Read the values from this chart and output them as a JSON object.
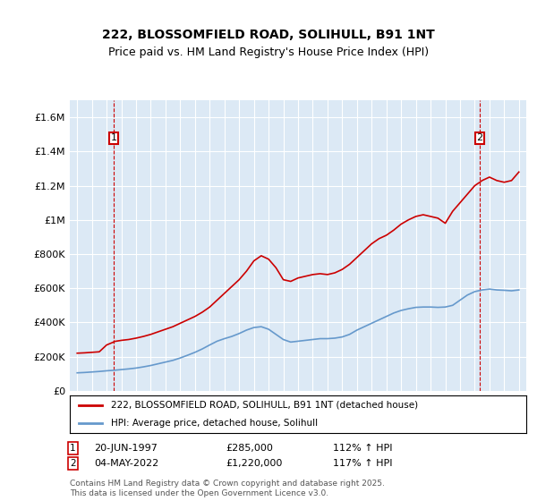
{
  "title_line1": "222, BLOSSOMFIELD ROAD, SOLIHULL, B91 1NT",
  "title_line2": "Price paid vs. HM Land Registry's House Price Index (HPI)",
  "ylabel": "",
  "background_color": "#dce9f5",
  "plot_bg_color": "#dce9f5",
  "outer_bg_color": "#ffffff",
  "red_line_color": "#cc0000",
  "blue_line_color": "#6699cc",
  "grid_color": "#ffffff",
  "ylim": [
    0,
    1700000
  ],
  "yticks": [
    0,
    200000,
    400000,
    600000,
    800000,
    1000000,
    1200000,
    1400000,
    1600000
  ],
  "ytick_labels": [
    "£0",
    "£200K",
    "£400K",
    "£600K",
    "£800K",
    "£1M",
    "£1.2M",
    "£1.4M",
    "£1.6M"
  ],
  "xlim_start": 1994.5,
  "xlim_end": 2025.5,
  "xticks": [
    1995,
    1996,
    1997,
    1998,
    1999,
    2000,
    2001,
    2002,
    2003,
    2004,
    2005,
    2006,
    2007,
    2008,
    2009,
    2010,
    2011,
    2012,
    2013,
    2014,
    2015,
    2016,
    2017,
    2018,
    2019,
    2020,
    2021,
    2022,
    2023,
    2024,
    2025
  ],
  "marker1_x": 1997.47,
  "marker1_y": 285000,
  "marker1_label": "1",
  "marker1_date": "20-JUN-1997",
  "marker1_price": "£285,000",
  "marker1_hpi": "112% ↑ HPI",
  "marker2_x": 2022.34,
  "marker2_y": 1220000,
  "marker2_label": "2",
  "marker2_date": "04-MAY-2022",
  "marker2_price": "£1,220,000",
  "marker2_hpi": "117% ↑ HPI",
  "legend_label_red": "222, BLOSSOMFIELD ROAD, SOLIHULL, B91 1NT (detached house)",
  "legend_label_blue": "HPI: Average price, detached house, Solihull",
  "footnote": "Contains HM Land Registry data © Crown copyright and database right 2025.\nThis data is licensed under the Open Government Licence v3.0.",
  "red_x": [
    1995.0,
    1995.5,
    1996.0,
    1996.5,
    1997.0,
    1997.47,
    1997.5,
    1998.0,
    1998.5,
    1999.0,
    1999.5,
    2000.0,
    2000.5,
    2001.0,
    2001.5,
    2002.0,
    2002.5,
    2003.0,
    2003.5,
    2004.0,
    2004.5,
    2005.0,
    2005.5,
    2006.0,
    2006.5,
    2007.0,
    2007.5,
    2008.0,
    2008.5,
    2009.0,
    2009.5,
    2010.0,
    2010.5,
    2011.0,
    2011.5,
    2012.0,
    2012.5,
    2013.0,
    2013.5,
    2014.0,
    2014.5,
    2015.0,
    2015.5,
    2016.0,
    2016.5,
    2017.0,
    2017.5,
    2018.0,
    2018.5,
    2019.0,
    2019.5,
    2020.0,
    2020.5,
    2021.0,
    2021.5,
    2022.0,
    2022.34,
    2022.5,
    2023.0,
    2023.5,
    2024.0,
    2024.5,
    2025.0
  ],
  "red_y": [
    220000,
    222000,
    225000,
    228000,
    268000,
    285000,
    288000,
    295000,
    300000,
    308000,
    318000,
    330000,
    345000,
    360000,
    375000,
    395000,
    415000,
    435000,
    460000,
    490000,
    530000,
    570000,
    610000,
    650000,
    700000,
    760000,
    790000,
    770000,
    720000,
    650000,
    640000,
    660000,
    670000,
    680000,
    685000,
    680000,
    690000,
    710000,
    740000,
    780000,
    820000,
    860000,
    890000,
    910000,
    940000,
    975000,
    1000000,
    1020000,
    1030000,
    1020000,
    1010000,
    980000,
    1050000,
    1100000,
    1150000,
    1200000,
    1220000,
    1230000,
    1250000,
    1230000,
    1220000,
    1230000,
    1280000
  ],
  "blue_x": [
    1995.0,
    1995.5,
    1996.0,
    1996.5,
    1997.0,
    1997.5,
    1998.0,
    1998.5,
    1999.0,
    1999.5,
    2000.0,
    2000.5,
    2001.0,
    2001.5,
    2002.0,
    2002.5,
    2003.0,
    2003.5,
    2004.0,
    2004.5,
    2005.0,
    2005.5,
    2006.0,
    2006.5,
    2007.0,
    2007.5,
    2008.0,
    2008.5,
    2009.0,
    2009.5,
    2010.0,
    2010.5,
    2011.0,
    2011.5,
    2012.0,
    2012.5,
    2013.0,
    2013.5,
    2014.0,
    2014.5,
    2015.0,
    2015.5,
    2016.0,
    2016.5,
    2017.0,
    2017.5,
    2018.0,
    2018.5,
    2019.0,
    2019.5,
    2020.0,
    2020.5,
    2021.0,
    2021.5,
    2022.0,
    2022.5,
    2023.0,
    2023.5,
    2024.0,
    2024.5,
    2025.0
  ],
  "blue_y": [
    105000,
    107000,
    110000,
    113000,
    117000,
    120000,
    124000,
    128000,
    133000,
    140000,
    148000,
    158000,
    168000,
    178000,
    192000,
    208000,
    225000,
    245000,
    268000,
    290000,
    305000,
    318000,
    335000,
    355000,
    370000,
    375000,
    360000,
    330000,
    300000,
    285000,
    290000,
    295000,
    300000,
    305000,
    305000,
    308000,
    315000,
    330000,
    355000,
    375000,
    395000,
    415000,
    435000,
    455000,
    470000,
    480000,
    488000,
    490000,
    490000,
    488000,
    490000,
    500000,
    530000,
    560000,
    580000,
    590000,
    595000,
    590000,
    588000,
    585000,
    590000
  ]
}
